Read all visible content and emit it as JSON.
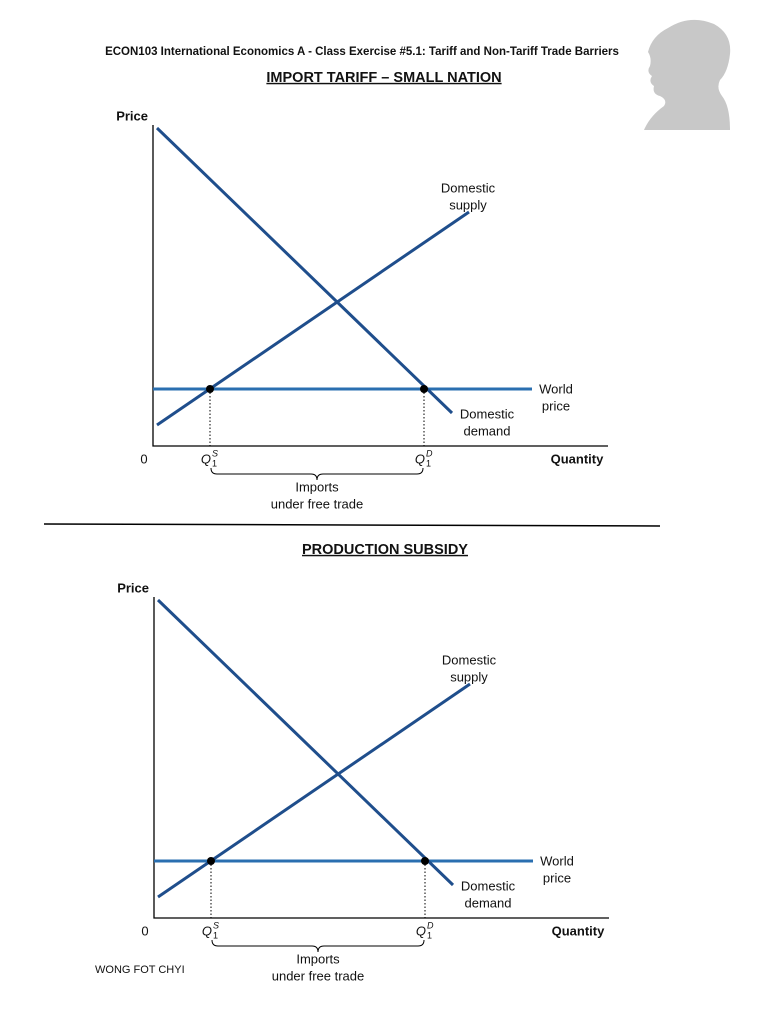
{
  "header": {
    "course": "ECON103 International Economics A - Class Exercise #5.1: Tariff and Non-Tariff Trade Barriers"
  },
  "sections": [
    {
      "title": "IMPORT TARIFF – SMALL NATION",
      "diagram": {
        "y_axis_label": "Price",
        "origin": "0",
        "x_axis_label": "Quantity",
        "supply_label": [
          "Domestic",
          "supply"
        ],
        "demand_label": [
          "Domestic",
          "demand"
        ],
        "world_price_label": [
          "World",
          "price"
        ],
        "qs": {
          "base": "Q",
          "sub": "1",
          "sup": "S"
        },
        "qd": {
          "base": "Q",
          "sub": "1",
          "sup": "D"
        },
        "imports_label": [
          "Imports",
          "under free trade"
        ]
      }
    },
    {
      "title": "PRODUCTION SUBSIDY",
      "diagram": {
        "y_axis_label": "Price",
        "origin": "0",
        "x_axis_label": "Quantity",
        "supply_label": [
          "Domestic",
          "supply"
        ],
        "demand_label": [
          "Domestic",
          "demand"
        ],
        "world_price_label": [
          "World",
          "price"
        ],
        "qs": {
          "base": "Q",
          "sub": "1",
          "sup": "S"
        },
        "qd": {
          "base": "Q",
          "sub": "1",
          "sup": "D"
        },
        "imports_label": [
          "Imports",
          "under free trade"
        ]
      }
    }
  ],
  "footer": {
    "author": "WONG FOT CHYI"
  }
}
